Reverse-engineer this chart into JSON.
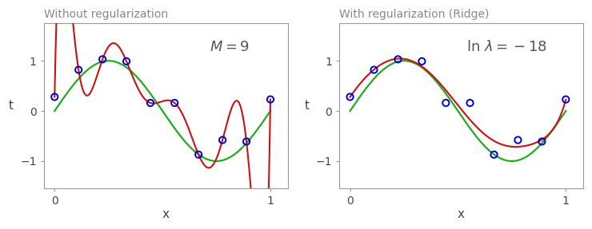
{
  "title_left": "Without regularization",
  "title_right": "With regularization (Ridge)",
  "xlabel": "x",
  "ylabel": "t",
  "xlim": [
    -0.05,
    1.08
  ],
  "ylim": [
    -1.55,
    1.75
  ],
  "data_points_x": [
    0.0,
    0.111,
    0.222,
    0.333,
    0.444,
    0.556,
    0.667,
    0.778,
    0.889,
    1.0
  ],
  "data_points_t": [
    0.28,
    0.82,
    1.03,
    0.99,
    0.16,
    0.16,
    -0.87,
    -0.58,
    -0.61,
    0.23
  ],
  "sine_color": "#22aa22",
  "poly_color": "#cc1111",
  "point_color": "#0000cc",
  "title_color": "#888888",
  "axis_color": "#999999",
  "tick_label_fontsize": 10,
  "title_fontsize": 10,
  "annotation_fontsize": 13,
  "figsize": [
    7.4,
    2.87
  ],
  "dpi": 100
}
